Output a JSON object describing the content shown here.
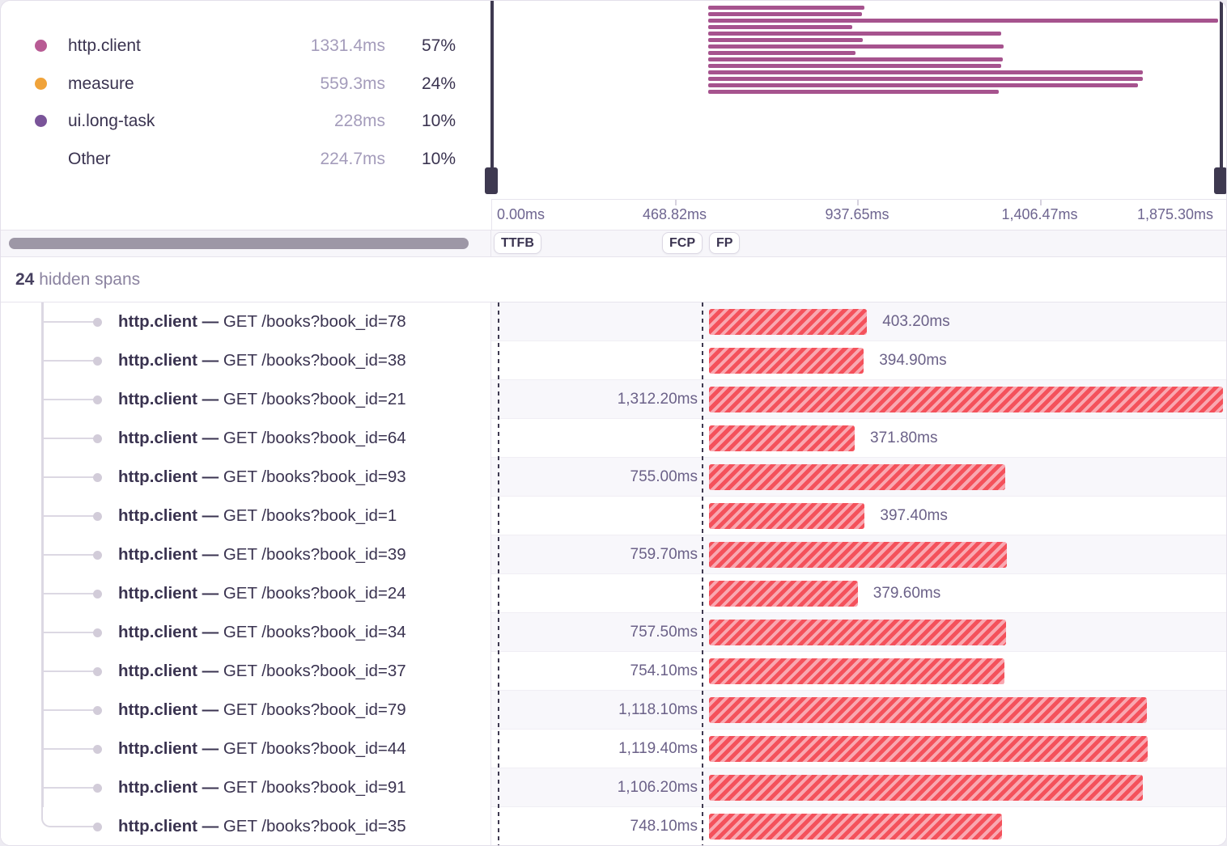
{
  "legend": {
    "items": [
      {
        "label": "http.client",
        "value": "1331.4ms",
        "percent": "57%",
        "dot_color": "#b85b94"
      },
      {
        "label": "measure",
        "value": "559.3ms",
        "percent": "24%",
        "dot_color": "#f0a33a"
      },
      {
        "label": "ui.long-task",
        "value": "228ms",
        "percent": "10%",
        "dot_color": "#7a5499"
      },
      {
        "label": "Other",
        "value": "224.7ms",
        "percent": "10%",
        "dot_color": ""
      }
    ]
  },
  "minimap": {
    "bar_color": "#a6538e"
  },
  "axis": {
    "labels": [
      "0.00ms",
      "468.82ms",
      "937.65ms",
      "1,406.47ms",
      "1,875.30ms"
    ],
    "total_ms": 1875.3
  },
  "markers": [
    {
      "label": "TTFB"
    },
    {
      "label": "FCP"
    },
    {
      "label": "FP"
    }
  ],
  "hidden_row": {
    "count": "24",
    "label": "hidden spans"
  },
  "spans": [
    {
      "op": "http.client",
      "sep": "—",
      "description": "GET /books?book_id=78",
      "duration_ms": 403.2,
      "duration_label": "403.20ms",
      "label_side": "right"
    },
    {
      "op": "http.client",
      "sep": "—",
      "description": "GET /books?book_id=38",
      "duration_ms": 394.9,
      "duration_label": "394.90ms",
      "label_side": "right"
    },
    {
      "op": "http.client",
      "sep": "—",
      "description": "GET /books?book_id=21",
      "duration_ms": 1312.2,
      "duration_label": "1,312.20ms",
      "label_side": "left"
    },
    {
      "op": "http.client",
      "sep": "—",
      "description": "GET /books?book_id=64",
      "duration_ms": 371.8,
      "duration_label": "371.80ms",
      "label_side": "right"
    },
    {
      "op": "http.client",
      "sep": "—",
      "description": "GET /books?book_id=93",
      "duration_ms": 755.0,
      "duration_label": "755.00ms",
      "label_side": "left"
    },
    {
      "op": "http.client",
      "sep": "—",
      "description": "GET /books?book_id=1",
      "duration_ms": 397.4,
      "duration_label": "397.40ms",
      "label_side": "right"
    },
    {
      "op": "http.client",
      "sep": "—",
      "description": "GET /books?book_id=39",
      "duration_ms": 759.7,
      "duration_label": "759.70ms",
      "label_side": "left"
    },
    {
      "op": "http.client",
      "sep": "—",
      "description": "GET /books?book_id=24",
      "duration_ms": 379.6,
      "duration_label": "379.60ms",
      "label_side": "right"
    },
    {
      "op": "http.client",
      "sep": "—",
      "description": "GET /books?book_id=34",
      "duration_ms": 757.5,
      "duration_label": "757.50ms",
      "label_side": "left"
    },
    {
      "op": "http.client",
      "sep": "—",
      "description": "GET /books?book_id=37",
      "duration_ms": 754.1,
      "duration_label": "754.10ms",
      "label_side": "left"
    },
    {
      "op": "http.client",
      "sep": "—",
      "description": "GET /books?book_id=79",
      "duration_ms": 1118.1,
      "duration_label": "1,118.10ms",
      "label_side": "left"
    },
    {
      "op": "http.client",
      "sep": "—",
      "description": "GET /books?book_id=44",
      "duration_ms": 1119.4,
      "duration_label": "1,119.40ms",
      "label_side": "left"
    },
    {
      "op": "http.client",
      "sep": "—",
      "description": "GET /books?book_id=91",
      "duration_ms": 1106.2,
      "duration_label": "1,106.20ms",
      "label_side": "left"
    },
    {
      "op": "http.client",
      "sep": "—",
      "description": "GET /books?book_id=35",
      "duration_ms": 748.1,
      "duration_label": "748.10ms",
      "label_side": "left"
    }
  ],
  "colors": {
    "span_bar_stripe_red": "#f4515b",
    "span_bar_stripe_pink": "#f9a8b1",
    "minimap_bar": "#a6538e"
  }
}
